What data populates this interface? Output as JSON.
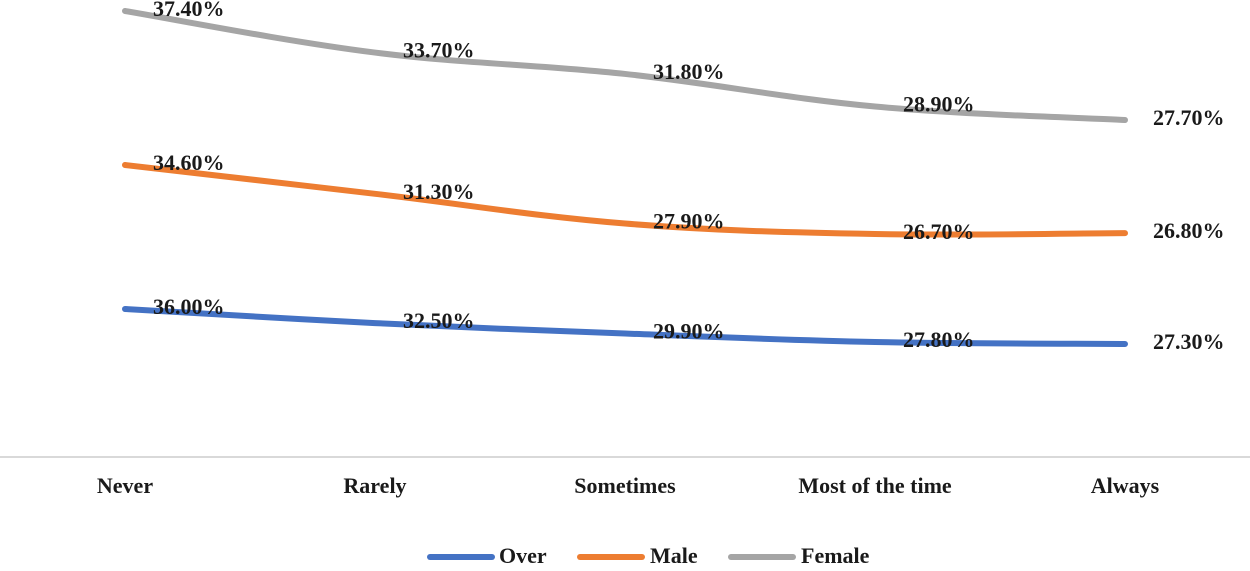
{
  "chart_data": {
    "type": "line",
    "categories": [
      "Never",
      "Rarely",
      "Sometimes",
      "Most of the time",
      "Always"
    ],
    "series": [
      {
        "name": "Over",
        "color": "#4472C4",
        "values": [
          36.0,
          32.5,
          29.9,
          27.8,
          27.3
        ],
        "labels": [
          "36.00%",
          "32.50%",
          "29.90%",
          "27.80%",
          "27.30%"
        ]
      },
      {
        "name": "Male",
        "color": "#ED7D31",
        "values": [
          34.6,
          31.3,
          27.9,
          26.7,
          26.8
        ],
        "labels": [
          "34.60%",
          "31.30%",
          "27.90%",
          "26.70%",
          "26.80%"
        ]
      },
      {
        "name": "Female",
        "color": "#A5A5A5",
        "values": [
          37.4,
          33.7,
          31.8,
          28.9,
          27.7
        ],
        "labels": [
          "37.40%",
          "33.70%",
          "31.80%",
          "28.90%",
          "27.70%"
        ]
      }
    ],
    "title": "",
    "xlabel": "",
    "ylabel": "",
    "legend_position": "bottom",
    "grid": false,
    "axis_color": "#D9D9D9"
  }
}
